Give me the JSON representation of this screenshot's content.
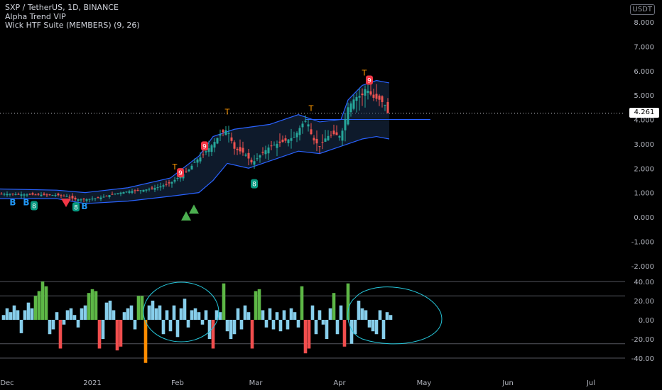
{
  "header": {
    "symbol_line": "SXP / TetherUS, 1D, BINANCE",
    "indicator_1": "Alpha Trend VIP",
    "indicator_2": "Wick HTF Suite (MEMBERS) (9, 26)"
  },
  "currency_button": "USDT",
  "last_price": "4.261",
  "chart_data": {
    "type": "candlestick",
    "pair": "SXP / TetherUS",
    "timeframe": "1D",
    "exchange": "BINANCE",
    "price_axis": {
      "ticks": [
        "8.000",
        "7.000",
        "6.000",
        "5.000",
        "4.000",
        "3.000",
        "2.000",
        "1.000",
        "0.000",
        "-1.000",
        "-2.000"
      ],
      "values": [
        8,
        7,
        6,
        5,
        4,
        3,
        2,
        1,
        0,
        -1,
        -2
      ]
    },
    "oscillator_axis": {
      "ticks": [
        "40.00",
        "20.00",
        "0.00",
        "-20.00",
        "-40.00"
      ],
      "values": [
        40,
        20,
        0,
        -20,
        -40
      ],
      "reference_lines": [
        40,
        25,
        -25,
        -40
      ]
    },
    "time_axis": [
      "Dec",
      "2021",
      "Feb",
      "Mar",
      "Apr",
      "May",
      "Jun",
      "Jul"
    ],
    "last_price": 4.261,
    "price_path": [
      [
        0,
        0.95
      ],
      [
        40,
        0.92
      ],
      [
        80,
        0.9
      ],
      [
        95,
        0.85
      ],
      [
        105,
        0.72
      ],
      [
        120,
        0.72
      ],
      [
        140,
        0.78
      ],
      [
        160,
        0.95
      ],
      [
        180,
        1.05
      ],
      [
        200,
        1.1
      ],
      [
        220,
        1.2
      ],
      [
        240,
        1.4
      ],
      [
        255,
        1.7
      ],
      [
        265,
        1.9
      ],
      [
        275,
        2.3
      ],
      [
        285,
        2.5
      ],
      [
        290,
        2.7
      ],
      [
        300,
        3.0
      ],
      [
        310,
        3.4
      ],
      [
        320,
        3.6
      ],
      [
        330,
        2.8
      ],
      [
        345,
        2.6
      ],
      [
        355,
        2.2
      ],
      [
        365,
        2.5
      ],
      [
        380,
        2.9
      ],
      [
        400,
        3.1
      ],
      [
        415,
        3.3
      ],
      [
        425,
        3.8
      ],
      [
        432,
        4.0
      ],
      [
        440,
        3.2
      ],
      [
        450,
        2.9
      ],
      [
        460,
        3.3
      ],
      [
        470,
        3.4
      ],
      [
        480,
        3.3
      ],
      [
        490,
        4.5
      ],
      [
        500,
        4.9
      ],
      [
        510,
        5.0
      ],
      [
        515,
        5.3
      ],
      [
        525,
        4.9
      ],
      [
        535,
        4.8
      ],
      [
        542,
        4.6
      ],
      [
        546,
        4.26
      ]
    ],
    "band_upper": [
      [
        0,
        1.15
      ],
      [
        80,
        1.1
      ],
      [
        120,
        1.0
      ],
      [
        180,
        1.2
      ],
      [
        240,
        1.6
      ],
      [
        280,
        2.5
      ],
      [
        300,
        3.3
      ],
      [
        330,
        3.6
      ],
      [
        380,
        3.8
      ],
      [
        420,
        4.2
      ],
      [
        450,
        3.9
      ],
      [
        480,
        4.0
      ],
      [
        490,
        4.8
      ],
      [
        510,
        5.4
      ],
      [
        530,
        5.6
      ],
      [
        548,
        5.5
      ]
    ],
    "band_lower": [
      [
        0,
        0.75
      ],
      [
        80,
        0.75
      ],
      [
        120,
        0.55
      ],
      [
        180,
        0.65
      ],
      [
        240,
        0.85
      ],
      [
        280,
        1.0
      ],
      [
        300,
        1.5
      ],
      [
        320,
        2.2
      ],
      [
        350,
        2.0
      ],
      [
        380,
        2.3
      ],
      [
        420,
        2.7
      ],
      [
        450,
        2.6
      ],
      [
        480,
        2.9
      ],
      [
        510,
        3.2
      ],
      [
        530,
        3.3
      ],
      [
        548,
        3.2
      ]
    ],
    "signals": [
      {
        "label": "B",
        "price": 0.65,
        "color": "#2196f3",
        "x": 18
      },
      {
        "label": "B",
        "price": 0.65,
        "color": "#2196f3",
        "x": 37
      },
      {
        "label": "8",
        "price": 0.45,
        "color": "#089981",
        "x": 48
      },
      {
        "label": "8",
        "price": 0.4,
        "color": "#089981",
        "x": 107
      },
      {
        "label": "B",
        "price": 0.5,
        "color": "#2196f3",
        "x": 119
      },
      {
        "label": "9",
        "price": 2.9,
        "color": "#f23645",
        "x": 288
      },
      {
        "label": "9",
        "price": 1.8,
        "color": "#f23645",
        "x": 254
      },
      {
        "label": "8",
        "price": 1.35,
        "color": "#089981",
        "x": 358
      },
      {
        "label": "9",
        "price": 5.6,
        "color": "#f23645",
        "x": 520
      },
      {
        "label": "T",
        "price": 4.2,
        "color": "#ff9800",
        "x": 320
      },
      {
        "label": "T",
        "price": 4.35,
        "color": "#ff9800",
        "x": 438
      },
      {
        "label": "T",
        "price": 5.8,
        "color": "#ff9800",
        "x": 513
      },
      {
        "label": "T",
        "price": 1.95,
        "color": "#ff9800",
        "x": 246
      }
    ],
    "triangles_up": [
      {
        "x": 262,
        "price": 0.0
      },
      {
        "x": 273,
        "price": 0.28
      }
    ],
    "triangles_down": [
      {
        "x": 93,
        "price": 0.55
      }
    ],
    "histogram_colors": {
      "up": "#5db746",
      "light": "#87ceeb",
      "down": "#f14e4e",
      "strong_down": "#ff8c00"
    },
    "oscillator_bars": [
      [
        5,
        5,
        "light"
      ],
      [
        10,
        12,
        "light"
      ],
      [
        15,
        8,
        "light"
      ],
      [
        20,
        15,
        "light"
      ],
      [
        25,
        10,
        "light"
      ],
      [
        30,
        -14,
        "light"
      ],
      [
        35,
        10,
        "light"
      ],
      [
        40,
        18,
        "light"
      ],
      [
        45,
        12,
        "light"
      ],
      [
        50,
        25,
        "up"
      ],
      [
        55,
        30,
        "up"
      ],
      [
        60,
        40,
        "up"
      ],
      [
        65,
        35,
        "up"
      ],
      [
        70,
        -15,
        "light"
      ],
      [
        75,
        -10,
        "light"
      ],
      [
        80,
        8,
        "light"
      ],
      [
        85,
        -30,
        "down"
      ],
      [
        90,
        -5,
        "light"
      ],
      [
        95,
        10,
        "light"
      ],
      [
        100,
        12,
        "light"
      ],
      [
        105,
        5,
        "light"
      ],
      [
        110,
        -8,
        "light"
      ],
      [
        115,
        12,
        "light"
      ],
      [
        120,
        15,
        "light"
      ],
      [
        125,
        28,
        "up"
      ],
      [
        130,
        32,
        "up"
      ],
      [
        135,
        30,
        "up"
      ],
      [
        140,
        -30,
        "down"
      ],
      [
        145,
        -20,
        "light"
      ],
      [
        150,
        18,
        "light"
      ],
      [
        155,
        20,
        "light"
      ],
      [
        160,
        10,
        "light"
      ],
      [
        165,
        -32,
        "down"
      ],
      [
        170,
        -28,
        "down"
      ],
      [
        175,
        8,
        "light"
      ],
      [
        180,
        12,
        "light"
      ],
      [
        185,
        15,
        "light"
      ],
      [
        190,
        -10,
        "light"
      ],
      [
        195,
        25,
        "up"
      ],
      [
        200,
        25,
        "up"
      ],
      [
        205,
        -45,
        "strong_down"
      ],
      [
        210,
        15,
        "light"
      ],
      [
        215,
        20,
        "light"
      ],
      [
        220,
        12,
        "light"
      ],
      [
        225,
        15,
        "light"
      ],
      [
        230,
        -15,
        "light"
      ],
      [
        235,
        10,
        "light"
      ],
      [
        240,
        -12,
        "light"
      ],
      [
        245,
        15,
        "light"
      ],
      [
        250,
        -18,
        "light"
      ],
      [
        255,
        12,
        "light"
      ],
      [
        260,
        22,
        "light"
      ],
      [
        265,
        -8,
        "light"
      ],
      [
        270,
        10,
        "light"
      ],
      [
        275,
        12,
        "light"
      ],
      [
        280,
        8,
        "light"
      ],
      [
        285,
        -5,
        "light"
      ],
      [
        290,
        10,
        "light"
      ],
      [
        295,
        -20,
        "light"
      ],
      [
        300,
        -30,
        "down"
      ],
      [
        305,
        10,
        "light"
      ],
      [
        310,
        8,
        "light"
      ],
      [
        315,
        38,
        "up"
      ],
      [
        320,
        -12,
        "light"
      ],
      [
        325,
        -20,
        "light"
      ],
      [
        330,
        -15,
        "light"
      ],
      [
        335,
        12,
        "light"
      ],
      [
        340,
        -10,
        "light"
      ],
      [
        345,
        15,
        "light"
      ],
      [
        350,
        8,
        "light"
      ],
      [
        355,
        -30,
        "down"
      ],
      [
        360,
        30,
        "up"
      ],
      [
        365,
        32,
        "up"
      ],
      [
        370,
        10,
        "light"
      ],
      [
        375,
        -8,
        "light"
      ],
      [
        380,
        12,
        "light"
      ],
      [
        385,
        -10,
        "light"
      ],
      [
        390,
        8,
        "light"
      ],
      [
        395,
        -12,
        "light"
      ],
      [
        400,
        10,
        "light"
      ],
      [
        405,
        -10,
        "light"
      ],
      [
        410,
        12,
        "light"
      ],
      [
        415,
        8,
        "light"
      ],
      [
        420,
        -8,
        "light"
      ],
      [
        425,
        35,
        "up"
      ],
      [
        430,
        -35,
        "down"
      ],
      [
        435,
        -30,
        "down"
      ],
      [
        440,
        15,
        "light"
      ],
      [
        445,
        -15,
        "light"
      ],
      [
        450,
        10,
        "light"
      ],
      [
        455,
        -5,
        "light"
      ],
      [
        460,
        -20,
        "light"
      ],
      [
        465,
        12,
        "light"
      ],
      [
        470,
        28,
        "up"
      ],
      [
        475,
        -15,
        "light"
      ],
      [
        480,
        15,
        "light"
      ],
      [
        485,
        -28,
        "down"
      ],
      [
        490,
        38,
        "up"
      ],
      [
        495,
        -25,
        "light"
      ],
      [
        500,
        -15,
        "light"
      ],
      [
        505,
        20,
        "light"
      ],
      [
        510,
        12,
        "light"
      ],
      [
        515,
        10,
        "light"
      ],
      [
        520,
        -8,
        "light"
      ],
      [
        525,
        -12,
        "light"
      ],
      [
        530,
        -15,
        "light"
      ],
      [
        535,
        10,
        "light"
      ],
      [
        540,
        -20,
        "light"
      ],
      [
        545,
        8,
        "light"
      ],
      [
        550,
        5,
        "light"
      ]
    ]
  }
}
